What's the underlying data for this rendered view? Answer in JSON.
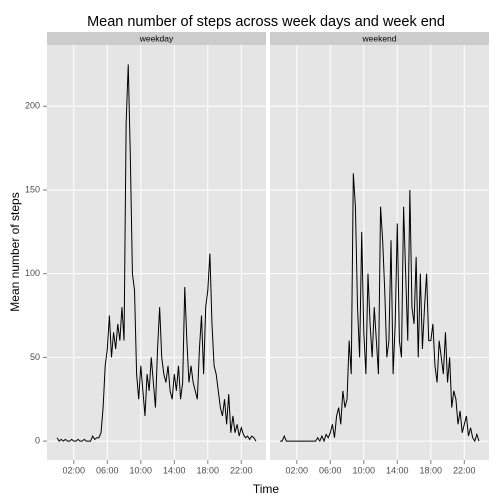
{
  "chart_data": {
    "type": "line",
    "title": "Mean number of steps across week days and week end",
    "xlabel": "Time",
    "ylabel": "Mean number of steps",
    "x": [
      0,
      0.25,
      0.5,
      0.75,
      1,
      1.25,
      1.5,
      1.75,
      2,
      2.25,
      2.5,
      2.75,
      3,
      3.25,
      3.5,
      3.75,
      4,
      4.25,
      4.5,
      4.75,
      5,
      5.25,
      5.5,
      5.75,
      6,
      6.25,
      6.5,
      6.75,
      7,
      7.25,
      7.5,
      7.75,
      8,
      8.25,
      8.5,
      8.75,
      9,
      9.25,
      9.5,
      9.75,
      10,
      10.25,
      10.5,
      10.75,
      11,
      11.25,
      11.5,
      11.75,
      12,
      12.25,
      12.5,
      12.75,
      13,
      13.25,
      13.5,
      13.75,
      14,
      14.25,
      14.5,
      14.75,
      15,
      15.25,
      15.5,
      15.75,
      16,
      16.25,
      16.5,
      16.75,
      17,
      17.25,
      17.5,
      17.75,
      18,
      18.25,
      18.5,
      18.75,
      19,
      19.25,
      19.5,
      19.75,
      20,
      20.25,
      20.5,
      20.75,
      21,
      21.25,
      21.5,
      21.75,
      22,
      22.25,
      22.5,
      22.75,
      23,
      23.25,
      23.5,
      23.75
    ],
    "series": [
      {
        "name": "weekday",
        "color": "#000000",
        "values": [
          2,
          0,
          1,
          0,
          1,
          0,
          0,
          1,
          0,
          0,
          1,
          0,
          0,
          1,
          0,
          0,
          0,
          3,
          1,
          2,
          2,
          5,
          20,
          45,
          55,
          75,
          50,
          65,
          55,
          70,
          60,
          80,
          60,
          190,
          225,
          170,
          100,
          90,
          40,
          25,
          45,
          30,
          15,
          40,
          30,
          50,
          35,
          20,
          55,
          80,
          50,
          40,
          35,
          45,
          30,
          25,
          40,
          30,
          45,
          25,
          35,
          92,
          60,
          35,
          45,
          35,
          30,
          25,
          55,
          75,
          40,
          80,
          90,
          112,
          70,
          45,
          40,
          30,
          20,
          15,
          25,
          10,
          28,
          5,
          15,
          5,
          10,
          3,
          8,
          4,
          2,
          3,
          1,
          3,
          2,
          0
        ]
      },
      {
        "name": "weekend",
        "color": "#000000",
        "values": [
          0,
          0,
          3,
          0,
          0,
          0,
          0,
          0,
          0,
          0,
          0,
          0,
          0,
          0,
          0,
          0,
          0,
          0,
          2,
          0,
          3,
          0,
          4,
          2,
          5,
          10,
          2,
          15,
          20,
          10,
          30,
          20,
          25,
          60,
          40,
          160,
          140,
          80,
          50,
          125,
          65,
          40,
          100,
          70,
          50,
          80,
          60,
          40,
          140,
          120,
          90,
          50,
          60,
          120,
          40,
          70,
          130,
          60,
          50,
          140,
          100,
          60,
          150,
          80,
          70,
          110,
          50,
          100,
          55,
          80,
          100,
          60,
          60,
          70,
          45,
          35,
          60,
          50,
          40,
          65,
          35,
          50,
          20,
          30,
          25,
          10,
          18,
          5,
          10,
          15,
          3,
          8,
          2,
          0,
          4,
          0
        ]
      }
    ],
    "xlim": [
      -1.2,
      24.95
    ],
    "xticks": [
      {
        "value": 2,
        "label": "02:00"
      },
      {
        "value": 6,
        "label": "06:00"
      },
      {
        "value": 10,
        "label": "10:00"
      },
      {
        "value": 14,
        "label": "14:00"
      },
      {
        "value": 18,
        "label": "18:00"
      },
      {
        "value": 22,
        "label": "22:00"
      }
    ],
    "ylim": [
      -11.3,
      236.6
    ],
    "yticks": [
      0,
      50,
      100,
      150,
      200
    ],
    "grid": true
  }
}
